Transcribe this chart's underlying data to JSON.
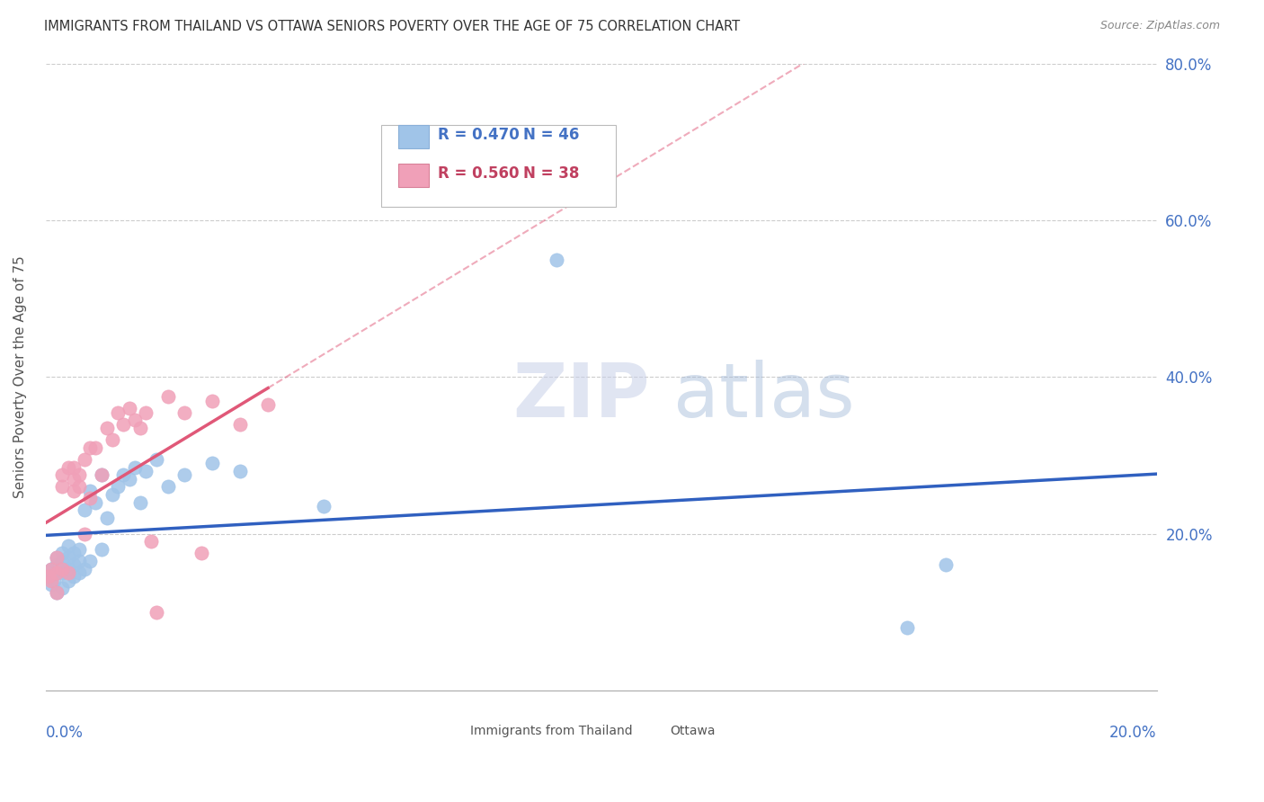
{
  "title": "IMMIGRANTS FROM THAILAND VS OTTAWA SENIORS POVERTY OVER THE AGE OF 75 CORRELATION CHART",
  "source": "Source: ZipAtlas.com",
  "ylabel": "Seniors Poverty Over the Age of 75",
  "xlim": [
    0.0,
    0.2
  ],
  "ylim": [
    0.0,
    0.8
  ],
  "yticks": [
    0.0,
    0.2,
    0.4,
    0.6,
    0.8
  ],
  "ytick_labels": [
    "",
    "20.0%",
    "40.0%",
    "60.0%",
    "80.0%"
  ],
  "series1_label": "Immigrants from Thailand",
  "series2_label": "Ottawa",
  "series1_R": 0.47,
  "series1_N": 46,
  "series2_R": 0.56,
  "series2_N": 38,
  "watermark": "ZIPatlas",
  "title_color": "#333333",
  "axis_color": "#4472c4",
  "series1_scatter_color": "#a0c4e8",
  "series2_scatter_color": "#f0a0b8",
  "trendline1_color": "#3060c0",
  "trendline2_color": "#e05878",
  "trendline1_dashed_color": "#c0c8e8",
  "grid_color": "#cccccc",
  "legend_text_color1": "#4472c4",
  "legend_text_color2": "#c04060",
  "thailand_x": [
    0.0005,
    0.001,
    0.001,
    0.0015,
    0.002,
    0.002,
    0.002,
    0.002,
    0.003,
    0.003,
    0.003,
    0.003,
    0.004,
    0.004,
    0.004,
    0.004,
    0.005,
    0.005,
    0.005,
    0.006,
    0.006,
    0.006,
    0.007,
    0.007,
    0.008,
    0.008,
    0.009,
    0.01,
    0.01,
    0.011,
    0.012,
    0.013,
    0.014,
    0.015,
    0.016,
    0.017,
    0.018,
    0.02,
    0.022,
    0.025,
    0.03,
    0.035,
    0.05,
    0.092,
    0.155,
    0.162
  ],
  "thailand_y": [
    0.145,
    0.135,
    0.155,
    0.14,
    0.125,
    0.15,
    0.16,
    0.17,
    0.13,
    0.15,
    0.165,
    0.175,
    0.14,
    0.155,
    0.17,
    0.185,
    0.145,
    0.16,
    0.175,
    0.15,
    0.165,
    0.18,
    0.155,
    0.23,
    0.165,
    0.255,
    0.24,
    0.18,
    0.275,
    0.22,
    0.25,
    0.26,
    0.275,
    0.27,
    0.285,
    0.24,
    0.28,
    0.295,
    0.26,
    0.275,
    0.29,
    0.28,
    0.235,
    0.55,
    0.08,
    0.16
  ],
  "ottawa_x": [
    0.0005,
    0.001,
    0.001,
    0.002,
    0.002,
    0.002,
    0.003,
    0.003,
    0.003,
    0.004,
    0.004,
    0.005,
    0.005,
    0.005,
    0.006,
    0.006,
    0.007,
    0.007,
    0.008,
    0.008,
    0.009,
    0.01,
    0.011,
    0.012,
    0.013,
    0.014,
    0.015,
    0.016,
    0.017,
    0.018,
    0.019,
    0.02,
    0.022,
    0.025,
    0.028,
    0.03,
    0.035,
    0.04
  ],
  "ottawa_y": [
    0.145,
    0.14,
    0.155,
    0.125,
    0.15,
    0.17,
    0.155,
    0.26,
    0.275,
    0.15,
    0.285,
    0.255,
    0.27,
    0.285,
    0.26,
    0.275,
    0.2,
    0.295,
    0.245,
    0.31,
    0.31,
    0.275,
    0.335,
    0.32,
    0.355,
    0.34,
    0.36,
    0.345,
    0.335,
    0.355,
    0.19,
    0.1,
    0.375,
    0.355,
    0.175,
    0.37,
    0.34,
    0.365
  ]
}
